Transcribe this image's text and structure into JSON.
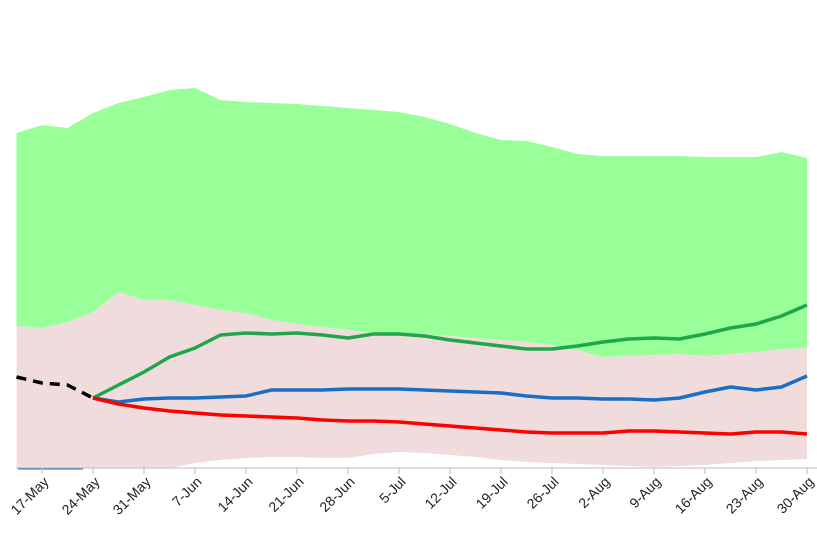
{
  "chart_data": {
    "type": "line",
    "categories": [
      null,
      "17-May",
      null,
      "24-May",
      null,
      "31-May",
      null,
      "7-Jun",
      null,
      "14-Jun",
      null,
      "21-Jun",
      null,
      "28-Jun",
      null,
      "5-Jul",
      null,
      "12-Jul",
      null,
      "19-Jul",
      null,
      "26-Jul",
      null,
      "2-Aug",
      null,
      "9-Aug",
      null,
      "16-Aug",
      null,
      "23-Aug",
      null,
      "30-Aug"
    ],
    "ylim": [
      0,
      100
    ],
    "bands": [
      {
        "color": "#f0dcdc",
        "upper": [
          35.5,
          35,
          36.5,
          39,
          44,
          42,
          42,
          40.75,
          39.5,
          38.75,
          37,
          36,
          35.25,
          34.5,
          33.75,
          33.75,
          33.5,
          33,
          32.5,
          32,
          31.5,
          30.75,
          29.5,
          27.75,
          28,
          28.25,
          28.5,
          28,
          28.5,
          29,
          29.75,
          30
        ],
        "lower": [
          0,
          0,
          0,
          0,
          0,
          0,
          0,
          1.25,
          2,
          2.5,
          2.75,
          2.75,
          2.5,
          2.5,
          3.5,
          4,
          3.75,
          3.25,
          2.75,
          2,
          1.5,
          1.25,
          1,
          0.75,
          0.5,
          0.25,
          0.5,
          0.75,
          1.25,
          1.75,
          2,
          2.25
        ]
      },
      {
        "color": "#99ff99",
        "upper": [
          83.75,
          85.75,
          85,
          88.75,
          91.25,
          92.75,
          94.5,
          95,
          92,
          91.5,
          91.25,
          91,
          90.5,
          90,
          89.5,
          89,
          87.75,
          86,
          83.75,
          82,
          81.75,
          80.25,
          78.5,
          78,
          78,
          78,
          78,
          77.75,
          77.75,
          77.75,
          79,
          77.5
        ],
        "lower": [
          35.5,
          35,
          36.5,
          39,
          44,
          42,
          42,
          40.75,
          39.5,
          38.75,
          37,
          36,
          35.25,
          34.5,
          33.75,
          33.75,
          33.5,
          33,
          32.5,
          32,
          31.5,
          30.75,
          29.5,
          27.75,
          28,
          28.25,
          28.5,
          28,
          28.5,
          29,
          29.75,
          30
        ]
      }
    ],
    "series": [
      {
        "color": "#000000",
        "dashed": true,
        "values": [
          22.75,
          21.25,
          20.75,
          17.5,
          null,
          null,
          null,
          null,
          null,
          null,
          null,
          null,
          null,
          null,
          null,
          null,
          null,
          null,
          null,
          null,
          null,
          null,
          null,
          null,
          null,
          null,
          null,
          null,
          null,
          null,
          null,
          null
        ]
      },
      {
        "color": "#1fa64a",
        "values": [
          null,
          null,
          null,
          17.5,
          20.75,
          24,
          27.75,
          30,
          33.25,
          33.75,
          33.5,
          33.75,
          33.25,
          32.5,
          33.5,
          33.5,
          33,
          32,
          31.25,
          30.5,
          29.75,
          29.75,
          30.5,
          31.5,
          32.25,
          32.5,
          32.25,
          33.5,
          35,
          36,
          38,
          40.75
        ]
      },
      {
        "color": "#1a6fc4",
        "values": [
          null,
          null,
          null,
          17.5,
          16.5,
          17.25,
          17.5,
          17.5,
          17.75,
          18,
          19.5,
          19.5,
          19.5,
          19.75,
          19.75,
          19.75,
          19.5,
          19.25,
          19,
          18.75,
          18,
          17.5,
          17.5,
          17.25,
          17.25,
          17,
          17.5,
          19,
          20.25,
          19.5,
          20.25,
          23
        ]
      },
      {
        "color": "#ff0000",
        "values": [
          null,
          null,
          null,
          17.5,
          16,
          15,
          14.25,
          13.75,
          13.25,
          13,
          12.75,
          12.5,
          12,
          11.75,
          11.75,
          11.5,
          11,
          10.5,
          10,
          9.5,
          9,
          8.75,
          8.75,
          8.75,
          9.25,
          9.25,
          9,
          8.75,
          8.5,
          9,
          9,
          8.5
        ]
      }
    ]
  }
}
